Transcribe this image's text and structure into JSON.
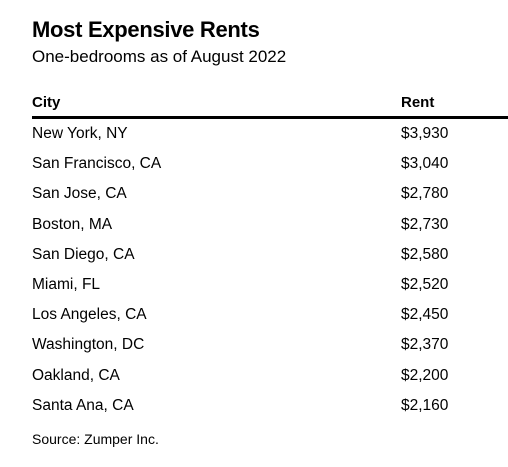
{
  "chart_data": {
    "type": "table",
    "title": "Most Expensive Rents",
    "subtitle": "One-bedrooms as of August 2022",
    "columns": [
      "City",
      "Rent"
    ],
    "rows": [
      {
        "city": "New York, NY",
        "rent": "$3,930"
      },
      {
        "city": "San Francisco, CA",
        "rent": "$3,040"
      },
      {
        "city": "San Jose, CA",
        "rent": "$2,780"
      },
      {
        "city": "Boston, MA",
        "rent": "$2,730"
      },
      {
        "city": "San Diego, CA",
        "rent": "$2,580"
      },
      {
        "city": "Miami, FL",
        "rent": "$2,520"
      },
      {
        "city": "Los Angeles, CA",
        "rent": "$2,450"
      },
      {
        "city": "Washington, DC",
        "rent": "$2,370"
      },
      {
        "city": "Oakland, CA",
        "rent": "$2,200"
      },
      {
        "city": "Santa Ana, CA",
        "rent": "$2,160"
      }
    ],
    "values": [
      3930,
      3040,
      2780,
      2730,
      2580,
      2520,
      2450,
      2370,
      2200,
      2160
    ],
    "source": "Source: Zumper Inc."
  }
}
